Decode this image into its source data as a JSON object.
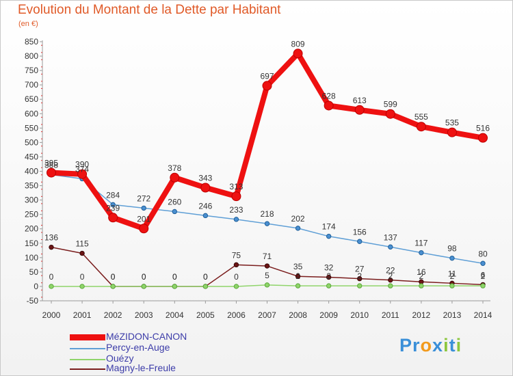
{
  "title": "Evolution du Montant de la Dette par Habitant",
  "subtitle": "(en €)",
  "logo": {
    "text": "Proxiti",
    "letters": [
      "P",
      "r",
      "o",
      "x",
      "i",
      "t",
      "i"
    ],
    "colors": [
      "#3a8fd8",
      "#3a8fd8",
      "#f29a1c",
      "#3a8fd8",
      "#8cc63f",
      "#3a8fd8",
      "#8cc63f"
    ]
  },
  "chart_data": {
    "type": "line",
    "title": "Evolution du Montant de la Dette par Habitant",
    "ylabel": "(en €)",
    "xlabel": "",
    "x": [
      "2000",
      "2001",
      "2002",
      "2003",
      "2004",
      "2005",
      "2006",
      "2007",
      "2008",
      "2009",
      "2010",
      "2011",
      "2012",
      "2013",
      "2014"
    ],
    "ylim": [
      -50,
      850
    ],
    "yticks": [
      "-50",
      "0",
      "50",
      "100",
      "150",
      "200",
      "250",
      "300",
      "350",
      "400",
      "450",
      "500",
      "550",
      "600",
      "650",
      "700",
      "750",
      "800",
      "850"
    ],
    "grid": false,
    "legend_position": "bottom-left",
    "series": [
      {
        "name": "Percy-en-Auge",
        "color": "#5f9fd6",
        "values": [
          388,
          374,
          284,
          272,
          260,
          246,
          233,
          218,
          202,
          174,
          156,
          137,
          117,
          98,
          80
        ],
        "labels": [
          "388",
          "374",
          "284",
          "272",
          "260",
          "246",
          "233",
          "218",
          "202",
          "174",
          "156",
          "137",
          "117",
          "98",
          "80"
        ]
      },
      {
        "name": "Magny-le-Freule",
        "color": "#7a1c1c",
        "values": [
          136,
          115,
          0,
          0,
          0,
          0,
          75,
          71,
          35,
          32,
          27,
          22,
          16,
          11,
          6
        ],
        "labels": [
          "136",
          "115",
          "0",
          "0",
          "0",
          "0",
          "75",
          "71",
          "35",
          "32",
          "27",
          "22",
          "16",
          "11",
          "6"
        ]
      },
      {
        "name": "Ouézy",
        "color": "#8fd46a",
        "values": [
          0,
          0,
          0,
          0,
          0,
          0,
          0,
          5,
          2,
          2,
          2,
          2,
          2,
          2,
          2
        ],
        "labels": [
          "0",
          "0",
          "0",
          "0",
          "0",
          "0",
          "0",
          "5",
          "2",
          "2",
          "2",
          "2",
          "2",
          "2",
          "2"
        ]
      },
      {
        "name": "MéZIDON-CANON",
        "color": "#ee1111",
        "values": [
          395,
          390,
          239,
          201,
          378,
          343,
          313,
          697,
          809,
          628,
          613,
          599,
          555,
          535,
          516
        ],
        "labels": [
          "395",
          "390",
          "239",
          "201",
          "378",
          "343",
          "313",
          "697",
          "809",
          "628",
          "613",
          "599",
          "555",
          "535",
          "516"
        ]
      }
    ],
    "legend": [
      "MéZIDON-CANON",
      "Percy-en-Auge",
      "Ouézy",
      "Magny-le-Freule"
    ]
  }
}
